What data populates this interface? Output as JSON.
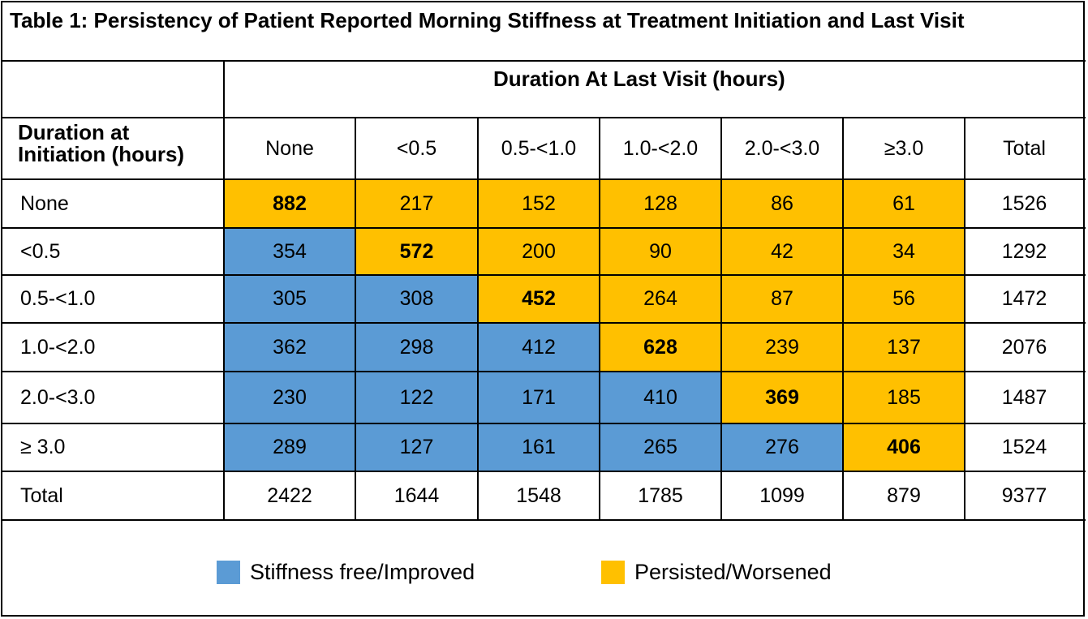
{
  "title": "Table 1: Persistency of Patient Reported Morning Stiffness at Treatment Initiation and Last Visit",
  "colors": {
    "improved": "#5b9bd5",
    "worsened": "#ffc000",
    "border": "#000000"
  },
  "chart_data": {
    "type": "table",
    "column_group_header": "Duration At Last Visit (hours)",
    "row_header": "Duration at Initiation (hours)",
    "columns": [
      "None",
      "<0.5",
      "0.5-<1.0",
      "1.0-<2.0",
      "2.0-<3.0",
      "≥3.0",
      "Total"
    ],
    "rows": [
      {
        "label": "None",
        "values": [
          "882",
          "217",
          "152",
          "128",
          "86",
          "61",
          "1526"
        ]
      },
      {
        "label": "<0.5",
        "values": [
          "354",
          "572",
          "200",
          "90",
          "42",
          "34",
          "1292"
        ]
      },
      {
        "label": "0.5-<1.0",
        "values": [
          "305",
          "308",
          "452",
          "264",
          "87",
          "56",
          "1472"
        ]
      },
      {
        "label": "1.0-<2.0",
        "values": [
          "362",
          "298",
          "412",
          "628",
          "239",
          "137",
          "2076"
        ]
      },
      {
        "label": "2.0-<3.0",
        "values": [
          "230",
          "122",
          "171",
          "410",
          "369",
          "185",
          "1487"
        ]
      },
      {
        "label": "≥ 3.0",
        "values": [
          "289",
          "127",
          "161",
          "265",
          "276",
          "406",
          "1524"
        ]
      },
      {
        "label": "Total",
        "values": [
          "2422",
          "1644",
          "1548",
          "1785",
          "1099",
          "879",
          "9377"
        ]
      }
    ],
    "legend": [
      {
        "label": "Stiffness free/Improved",
        "color": "#5b9bd5"
      },
      {
        "label": "Persisted/Worsened",
        "color": "#ffc000"
      }
    ]
  }
}
